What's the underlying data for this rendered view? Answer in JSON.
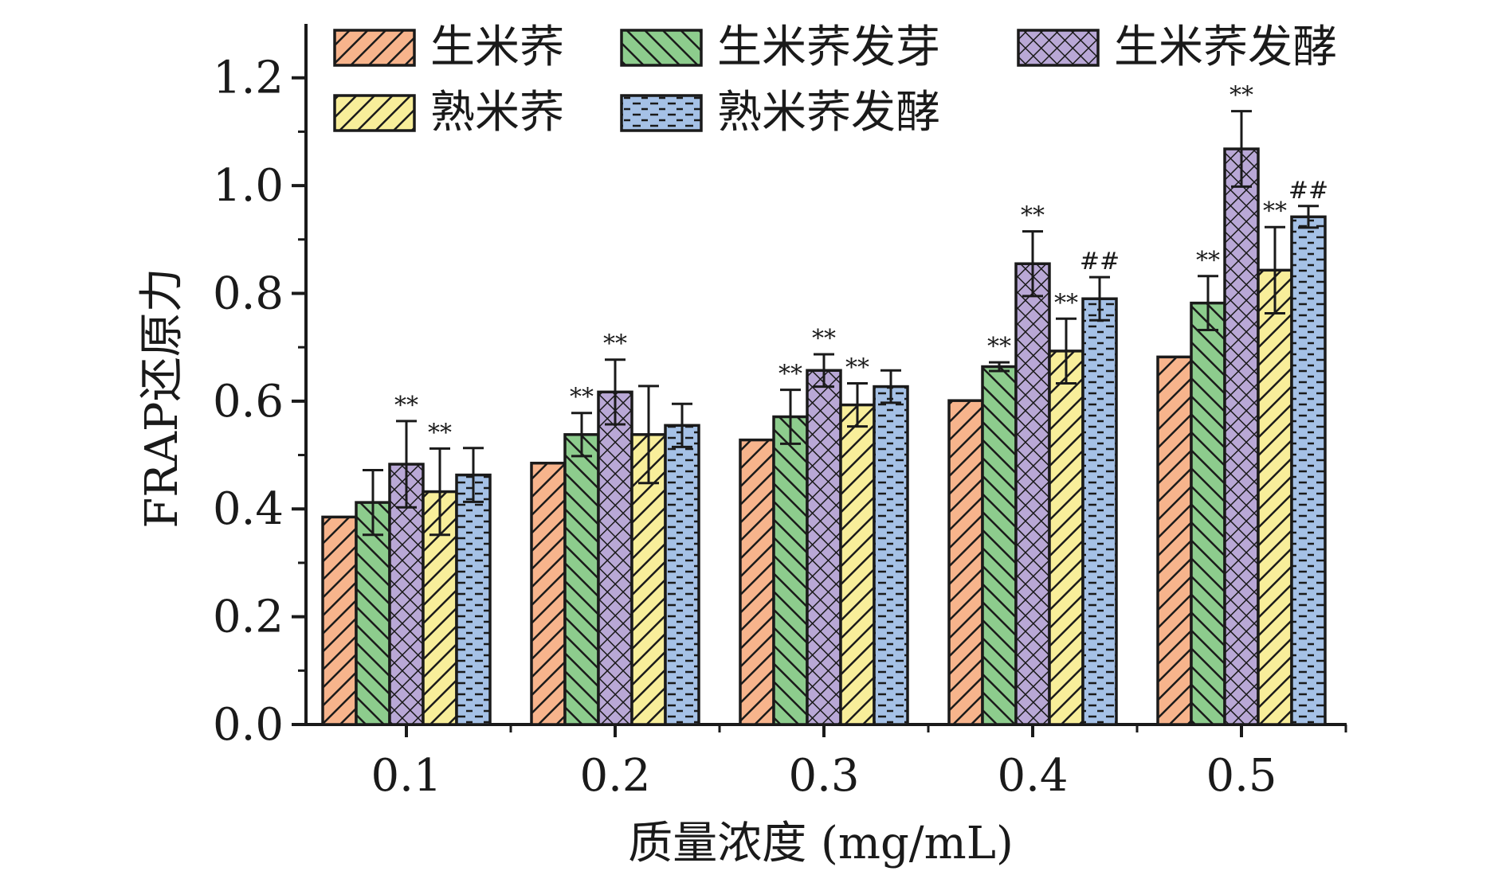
{
  "chart_data": {
    "type": "bar",
    "xlabel": "质量浓度 (mg/mL)",
    "ylabel": "FRAP还原力",
    "ylim": [
      0,
      1.3
    ],
    "yticks": [
      "0.0",
      "0.2",
      "0.4",
      "0.6",
      "0.8",
      "1.0",
      "1.2"
    ],
    "categories": [
      "0.1",
      "0.2",
      "0.3",
      "0.4",
      "0.5"
    ],
    "legend_position": "top",
    "series": [
      {
        "name": "生米荞",
        "color": "#f7b48c",
        "pattern": "diag-forward",
        "values": [
          0.385,
          0.485,
          0.528,
          0.601,
          0.682
        ],
        "errors": [
          0,
          0,
          0,
          0,
          0
        ],
        "annotations": [
          "",
          "",
          "",
          "",
          ""
        ]
      },
      {
        "name": "生米荞发芽",
        "color": "#8dcc8d",
        "pattern": "diag-back",
        "values": [
          0.412,
          0.538,
          0.571,
          0.664,
          0.782
        ],
        "errors": [
          0.06,
          0.04,
          0.05,
          0.008,
          0.05
        ],
        "annotations": [
          "",
          "**",
          "**",
          "**",
          "**"
        ]
      },
      {
        "name": "生米荞发酵",
        "color": "#b9a8d6",
        "pattern": "crosshatch",
        "values": [
          0.483,
          0.617,
          0.657,
          0.855,
          1.068
        ],
        "errors": [
          0.08,
          0.06,
          0.03,
          0.06,
          0.07
        ],
        "annotations": [
          "**",
          "**",
          "**",
          "**",
          "**"
        ]
      },
      {
        "name": "熟米荞",
        "color": "#f8ee9a",
        "pattern": "diag-forward",
        "values": [
          0.432,
          0.538,
          0.593,
          0.693,
          0.843
        ],
        "errors": [
          0.08,
          0.09,
          0.04,
          0.06,
          0.08
        ],
        "annotations": [
          "**",
          "",
          "**",
          "**",
          "**"
        ]
      },
      {
        "name": "熟米荞发酵",
        "color": "#a5c1e6",
        "pattern": "dashes",
        "values": [
          0.463,
          0.555,
          0.627,
          0.79,
          0.942
        ],
        "errors": [
          0.05,
          0.04,
          0.03,
          0.04,
          0.02
        ],
        "annotations": [
          "",
          "",
          "",
          "##",
          "##"
        ]
      }
    ]
  }
}
